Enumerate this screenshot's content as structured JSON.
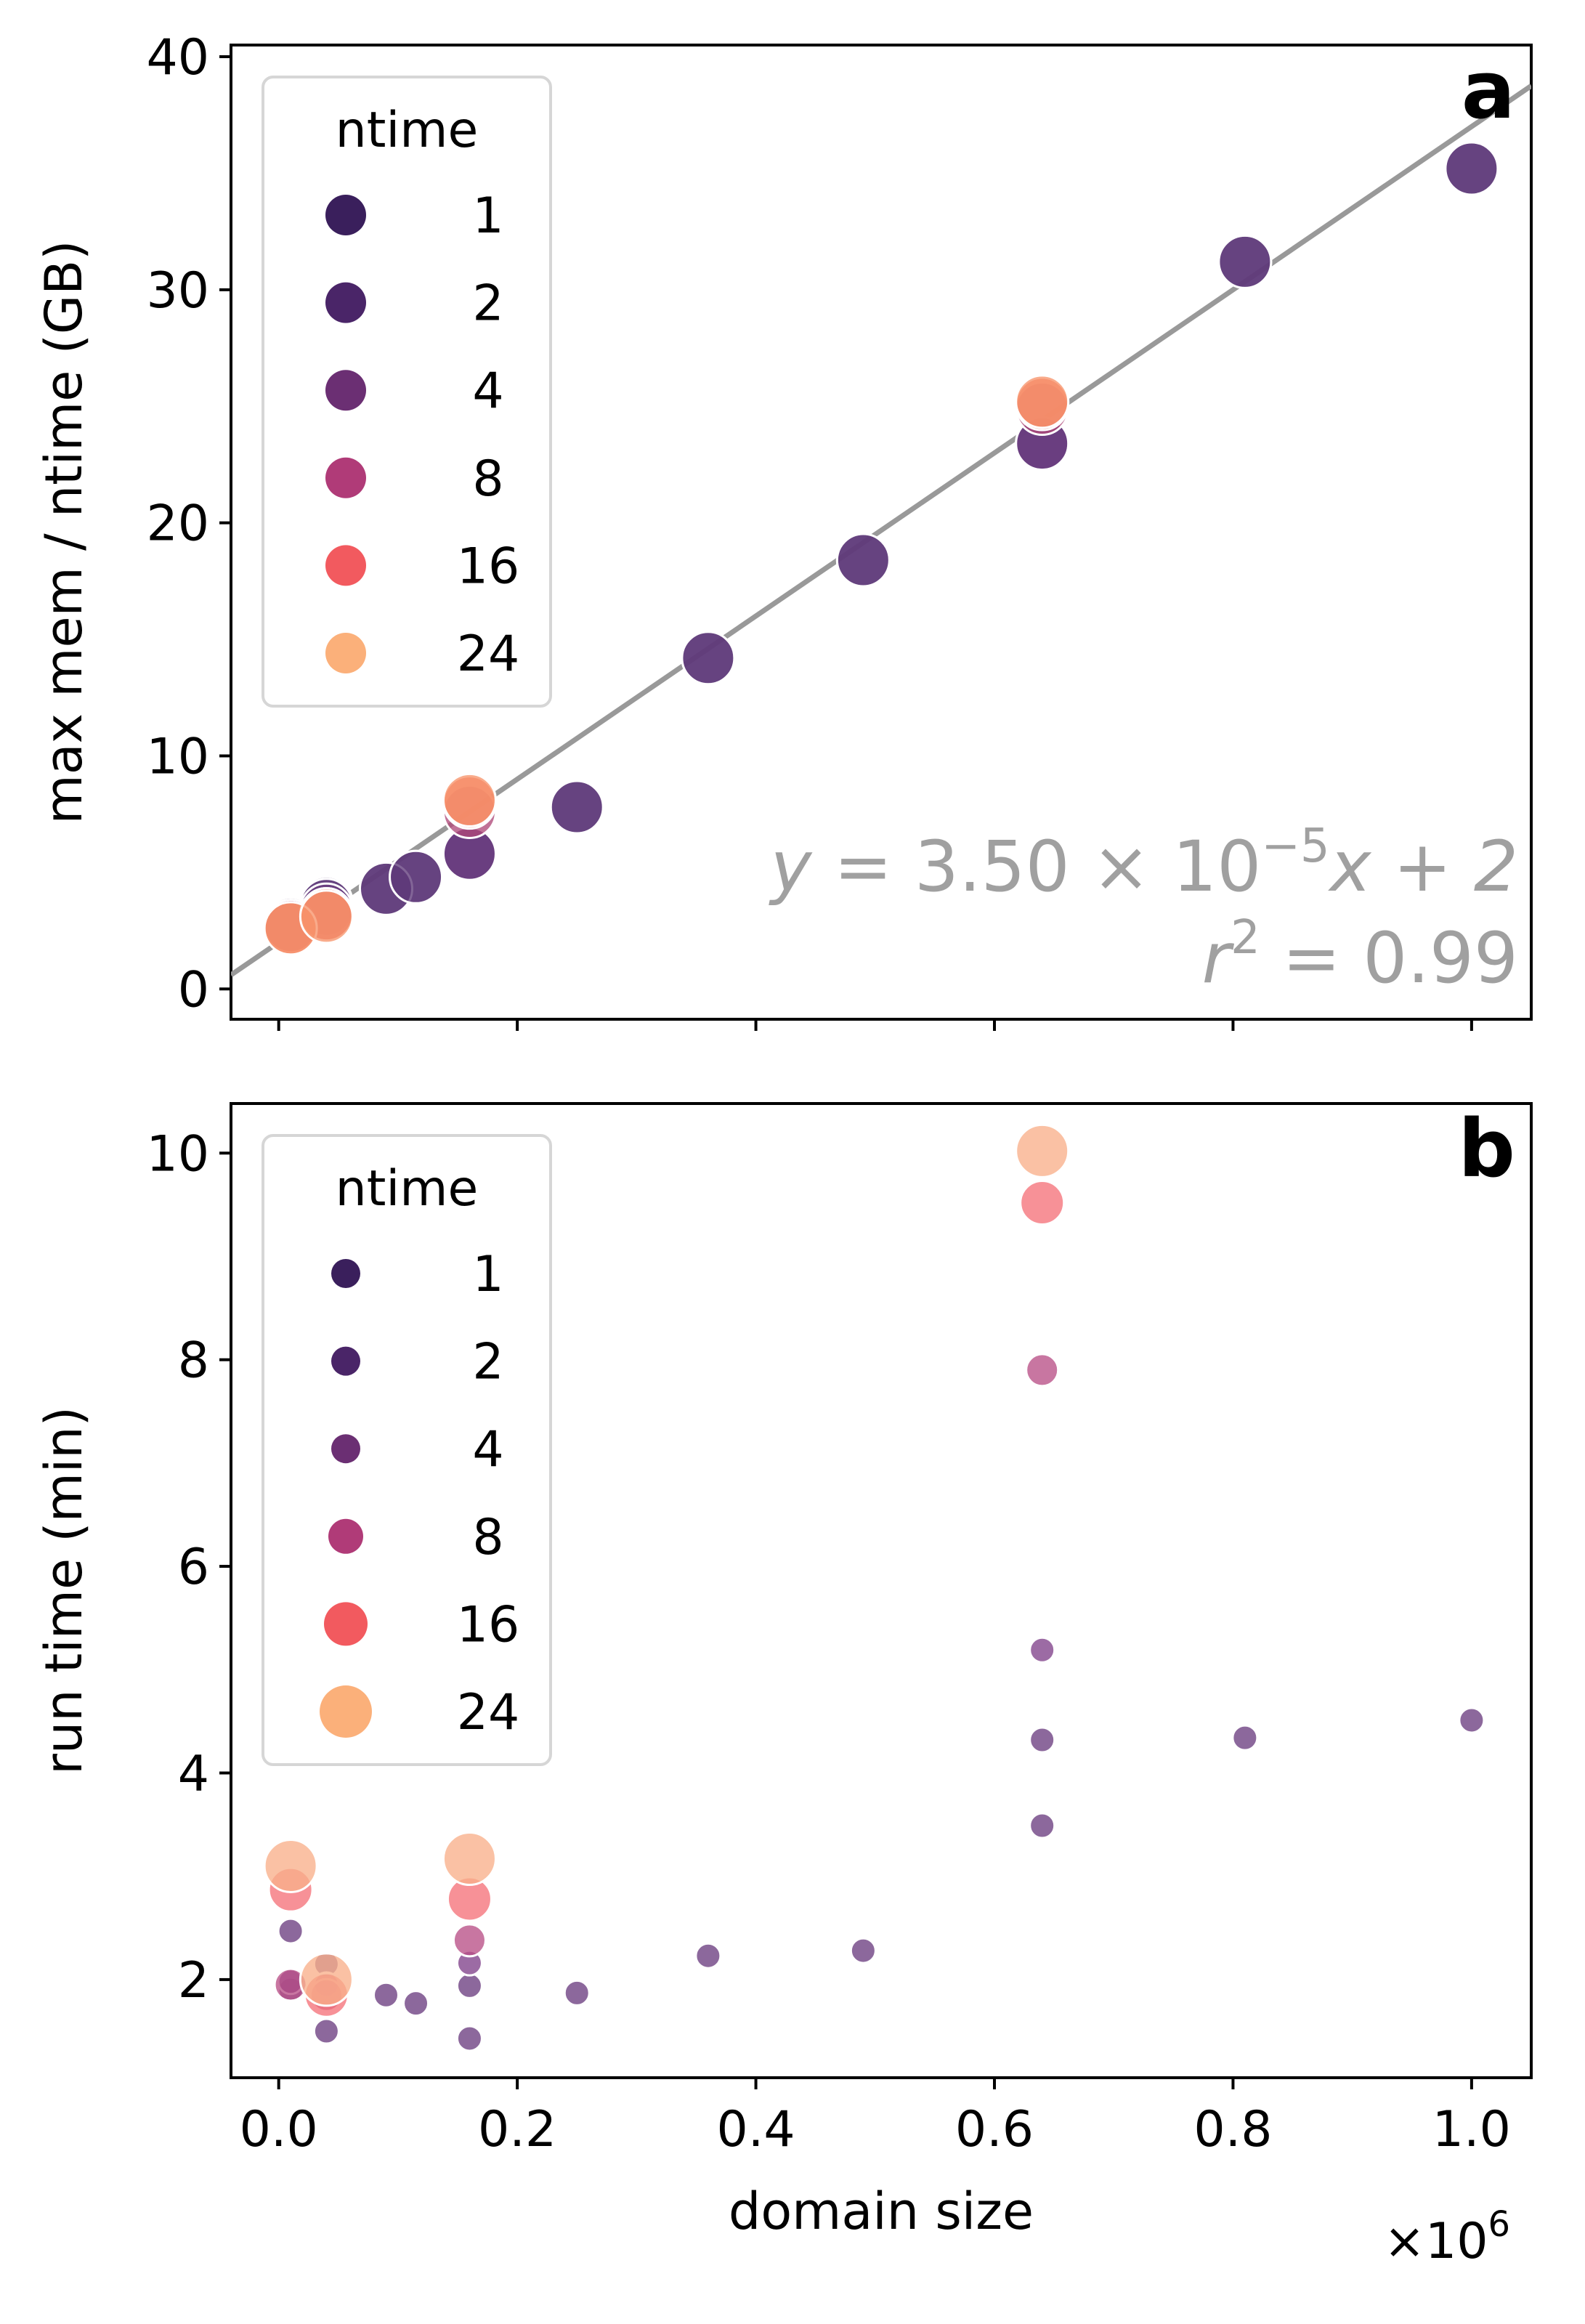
{
  "chart_data": [
    {
      "type": "scatter",
      "panel_label": "a",
      "ylabel": "max mem / ntime (GB)",
      "xlim": [
        -40000,
        1050000
      ],
      "ylim": [
        -1.3,
        40.5
      ],
      "yticks": [
        0,
        10,
        20,
        30,
        40
      ],
      "ytick_labels": [
        "0",
        "10",
        "20",
        "30",
        "40"
      ],
      "xticks": [
        0,
        200000,
        400000,
        600000,
        800000,
        1000000
      ],
      "legend": {
        "title": "ntime",
        "placement": "top-left"
      },
      "series": [
        {
          "name": "1",
          "color": "#5f3a7a",
          "points": [
            [
              10000,
              2.8
            ],
            [
              40000,
              3.7
            ],
            [
              90000,
              4.3
            ],
            [
              115000,
              4.8
            ],
            [
              160000,
              5.8
            ],
            [
              250000,
              7.8
            ],
            [
              360000,
              14.2
            ],
            [
              490000,
              18.4
            ],
            [
              640000,
              23.4
            ],
            [
              810000,
              31.2
            ],
            [
              1000000,
              35.2
            ]
          ]
        },
        {
          "name": "2",
          "color": "#5f3a7a",
          "points": [
            [
              10000,
              2.8
            ],
            [
              40000,
              3.6
            ],
            [
              90000,
              4.3
            ],
            [
              115000,
              4.8
            ],
            [
              160000,
              5.8
            ],
            [
              250000,
              7.8
            ],
            [
              360000,
              14.2
            ],
            [
              490000,
              18.4
            ],
            [
              640000,
              23.4
            ],
            [
              810000,
              31.2
            ],
            [
              1000000,
              35.2
            ]
          ]
        },
        {
          "name": "4",
          "color": "#6b3d80",
          "points": [
            [
              10000,
              2.7
            ],
            [
              40000,
              3.4
            ],
            [
              160000,
              5.8
            ],
            [
              640000,
              23.4
            ]
          ]
        },
        {
          "name": "8",
          "color": "#b04a7a",
          "points": [
            [
              10000,
              2.7
            ],
            [
              40000,
              3.2
            ],
            [
              160000,
              7.6
            ],
            [
              640000,
              24.9
            ]
          ]
        },
        {
          "name": "16",
          "color": "#f07260",
          "points": [
            [
              10000,
              2.6
            ],
            [
              40000,
              3.2
            ],
            [
              160000,
              8.0
            ],
            [
              640000,
              25.1
            ]
          ]
        },
        {
          "name": "24",
          "color": "#f7936a",
          "points": [
            [
              10000,
              2.6
            ],
            [
              40000,
              3.1
            ],
            [
              160000,
              8.1
            ],
            [
              640000,
              25.2
            ]
          ]
        }
      ],
      "fit": {
        "slope": 3.5e-05,
        "intercept": 2,
        "color": "#999999"
      },
      "annotation": {
        "line1_var": "y",
        "line1_eq": " = 3.50 × 10",
        "line1_exp": "−5",
        "line1_tail": "x + 2",
        "line2_var": "r",
        "line2_exp": "2",
        "line2_tail": " = 0.99"
      }
    },
    {
      "type": "scatter",
      "panel_label": "b",
      "xlabel": "domain size",
      "ylabel": "run time (min)",
      "x_multiplier": "×10",
      "x_multiplier_exp": "6",
      "xlim": [
        -40000,
        1050000
      ],
      "ylim": [
        1.05,
        10.48
      ],
      "yticks": [
        2,
        4,
        6,
        8,
        10
      ],
      "ytick_labels": [
        "2",
        "4",
        "6",
        "8",
        "10"
      ],
      "xticks": [
        0,
        200000,
        400000,
        600000,
        800000,
        1000000
      ],
      "xtick_labels": [
        "0.0",
        "0.2",
        "0.4",
        "0.6",
        "0.8",
        "1.0"
      ],
      "legend": {
        "title": "ntime",
        "placement": "top-left"
      },
      "series": [
        {
          "name": "1",
          "color": "#6b3d80",
          "size": "small",
          "points": [
            [
              10000,
              1.9
            ],
            [
              40000,
              1.5
            ],
            [
              90000,
              1.85
            ],
            [
              115000,
              1.77
            ],
            [
              160000,
              1.43
            ],
            [
              250000,
              1.87
            ],
            [
              360000,
              2.23
            ],
            [
              490000,
              2.28
            ],
            [
              640000,
              3.49
            ],
            [
              810000,
              4.34
            ],
            [
              1000000,
              4.51
            ]
          ]
        },
        {
          "name": "2",
          "color": "#6b3d80",
          "size": "small",
          "points": [
            [
              10000,
              2.47
            ],
            [
              40000,
              2.15
            ],
            [
              160000,
              1.94
            ],
            [
              640000,
              4.32
            ]
          ]
        },
        {
          "name": "4",
          "color": "#80418a",
          "size": "small",
          "points": [
            [
              10000,
              1.98
            ],
            [
              40000,
              1.95
            ],
            [
              160000,
              2.16
            ],
            [
              640000,
              5.19
            ]
          ]
        },
        {
          "name": "8",
          "color": "#b84f86",
          "size": "medium",
          "points": [
            [
              10000,
              1.95
            ],
            [
              40000,
              1.85
            ],
            [
              160000,
              2.38
            ],
            [
              640000,
              7.9
            ]
          ]
        },
        {
          "name": "16",
          "color": "#f5727a",
          "size": "large",
          "points": [
            [
              10000,
              2.87
            ],
            [
              40000,
              1.85
            ],
            [
              160000,
              2.78
            ],
            [
              640000,
              9.52
            ]
          ]
        },
        {
          "name": "24",
          "color": "#f9b08a",
          "size": "xlarge",
          "points": [
            [
              10000,
              3.1
            ],
            [
              40000,
              2.0
            ],
            [
              160000,
              3.17
            ],
            [
              640000,
              10.02
            ]
          ]
        }
      ]
    }
  ]
}
